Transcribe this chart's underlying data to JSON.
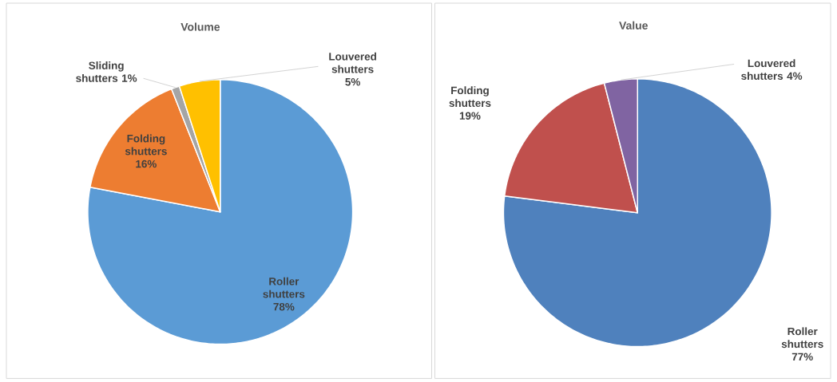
{
  "chart_data": [
    {
      "type": "pie",
      "title": "Volume",
      "categories": [
        "Roller shutters",
        "Folding shutters",
        "Sliding shutters",
        "Louvered shutters"
      ],
      "values": [
        78,
        16,
        1,
        5
      ],
      "value_labels": [
        "78%",
        "16%",
        "1%",
        "5%"
      ],
      "colors": [
        "#5b9bd5",
        "#ed7d31",
        "#a5a5a5",
        "#ffc000"
      ]
    },
    {
      "type": "pie",
      "title": "Value",
      "categories": [
        "Roller shutters",
        "Folding shutters",
        "Louvered shutters"
      ],
      "values": [
        77,
        19,
        4
      ],
      "value_labels": [
        "77%",
        "19%",
        "4%"
      ],
      "colors": [
        "#4f81bd",
        "#c0504d",
        "#8064a2"
      ]
    }
  ]
}
